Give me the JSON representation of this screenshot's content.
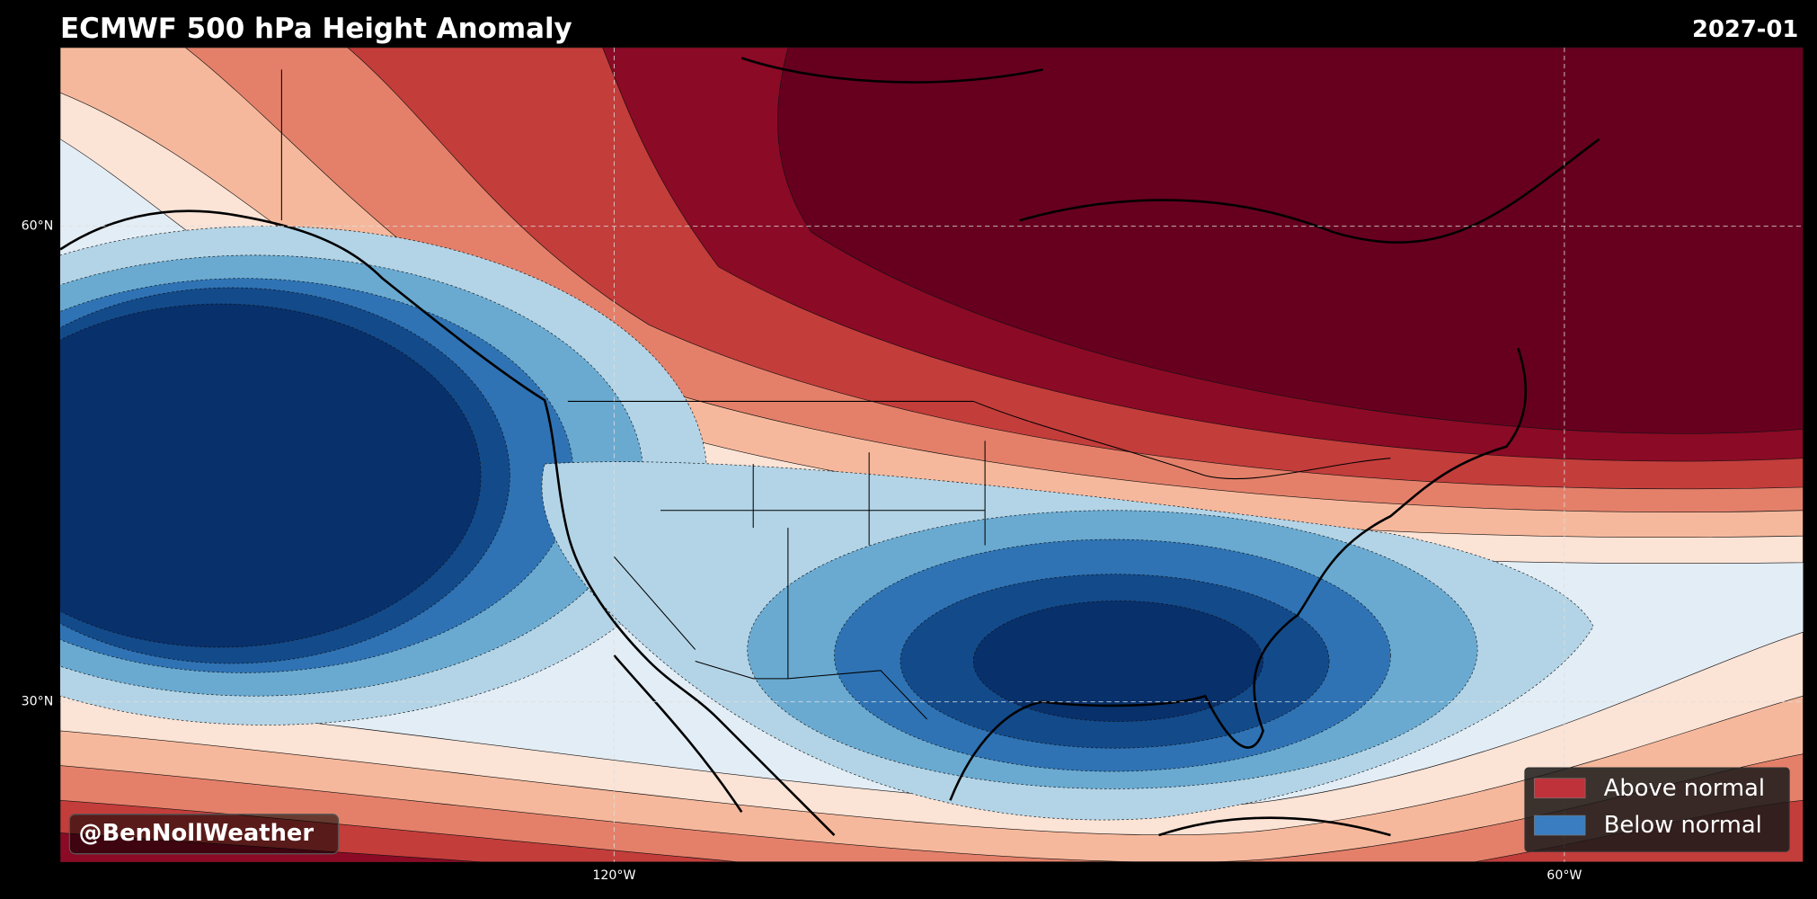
{
  "header": {
    "title": "ECMWF 500 hPa Height Anomaly",
    "date": "2027-01"
  },
  "axes": {
    "lat_labels": [
      "60°N",
      "30°N"
    ],
    "lon_labels": [
      "120°W",
      "60°W"
    ]
  },
  "legend": [
    {
      "label": "Above normal"
    },
    {
      "label": "Below normal"
    }
  ],
  "watermark": "@BenNollWeather"
}
